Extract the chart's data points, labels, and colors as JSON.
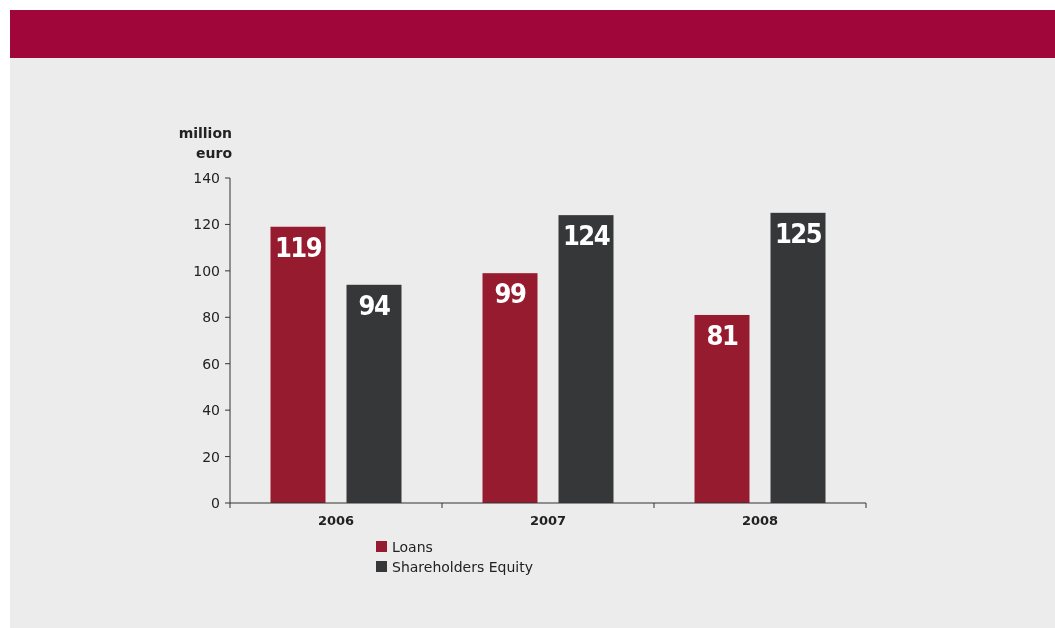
{
  "chart_data": {
    "type": "bar",
    "ylabel": "million\neuro",
    "categories": [
      "2006",
      "2007",
      "2008"
    ],
    "series": [
      {
        "name": "Loans",
        "color": "#971b2f",
        "values": [
          119,
          99,
          81
        ]
      },
      {
        "name": "Shareholders Equity",
        "color": "#363739",
        "values": [
          94,
          124,
          125
        ]
      }
    ],
    "ylim": [
      0,
      140
    ],
    "yticks": [
      0,
      20,
      40,
      60,
      80,
      100,
      120,
      140
    ],
    "grid": false,
    "legend": "bottom",
    "data_labels": true
  }
}
